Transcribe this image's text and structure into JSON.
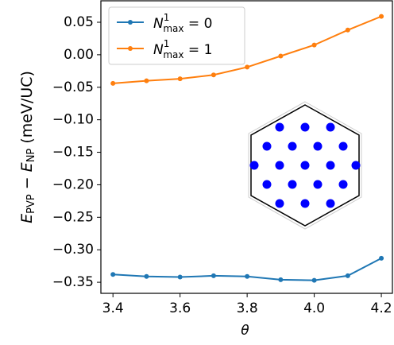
{
  "chart_data": {
    "type": "line",
    "x_label": "θ",
    "y_label": [
      "E",
      "PVP",
      " − ",
      "E",
      "NP",
      " (meV/UC)"
    ],
    "x": [
      3.4,
      3.5,
      3.6,
      3.7,
      3.8,
      3.9,
      4.0,
      4.1,
      4.2
    ],
    "series": [
      {
        "name": [
          "N",
          "1",
          "max",
          " = 0"
        ],
        "color": "#1f77b4",
        "values": [
          -0.338,
          -0.341,
          -0.342,
          -0.34,
          -0.341,
          -0.346,
          -0.347,
          -0.34,
          -0.313
        ]
      },
      {
        "name": [
          "N",
          "1",
          "max",
          " = 1"
        ],
        "color": "#ff7f0e",
        "values": [
          -0.044,
          -0.04,
          -0.037,
          -0.031,
          -0.019,
          -0.002,
          0.015,
          0.038,
          0.059
        ]
      }
    ],
    "xlim": [
      3.364,
      4.233
    ],
    "ylim": [
      -0.367,
      0.083
    ],
    "xticks": [
      3.4,
      3.6,
      3.8,
      {
        "value": 4.0,
        "label": "4.0"
      },
      4.2
    ],
    "yticks": [
      {
        "value": 0.05,
        "label": "0.05"
      },
      {
        "value": 0.0,
        "label": "0.00"
      },
      {
        "value": -0.05,
        "label": "−0.05"
      },
      {
        "value": -0.1,
        "label": "−0.10"
      },
      {
        "value": -0.15,
        "label": "−0.15"
      },
      {
        "value": -0.2,
        "label": "−0.20"
      },
      {
        "value": -0.25,
        "label": "−0.25"
      },
      {
        "value": -0.3,
        "label": "−0.30"
      },
      {
        "value": -0.35,
        "label": "−0.35"
      }
    ],
    "legend": "upper left"
  }
}
